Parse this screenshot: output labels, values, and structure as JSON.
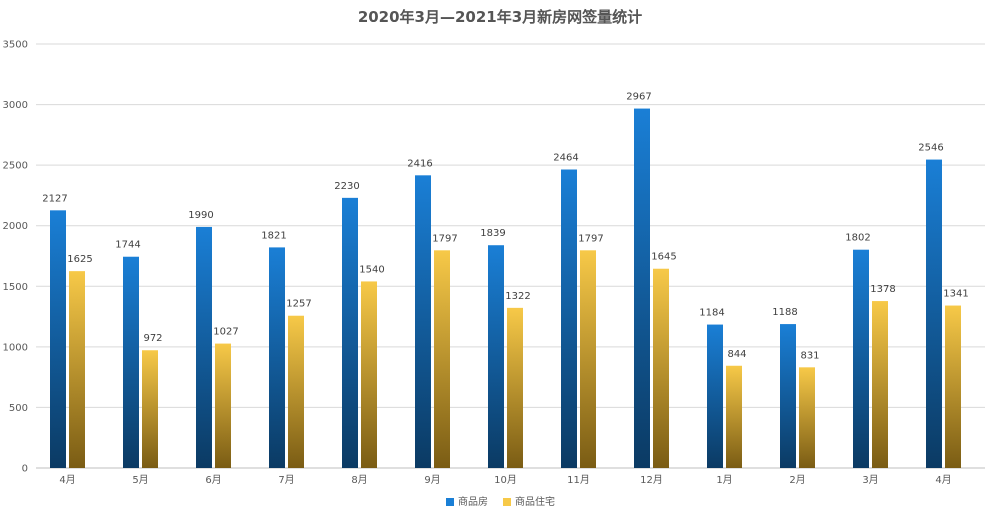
{
  "chart_data": {
    "type": "bar",
    "title": "2020年3月—2021年3月新房网签量统计",
    "categories": [
      "4月",
      "5月",
      "6月",
      "7月",
      "8月",
      "9月",
      "10月",
      "11月",
      "12月",
      "1月",
      "2月",
      "3月",
      "4月"
    ],
    "series": [
      {
        "name": "商品房",
        "values": [
          2127,
          1744,
          1990,
          1821,
          2230,
          2416,
          1839,
          2464,
          2967,
          1184,
          1188,
          1802,
          2546
        ],
        "color_top": "#1a7fd6",
        "color_bottom": "#0b3a63"
      },
      {
        "name": "商品住宅",
        "values": [
          1625,
          972,
          1027,
          1257,
          1540,
          1797,
          1322,
          1797,
          1645,
          844,
          831,
          1378,
          1341
        ],
        "color_top": "#f7c948",
        "color_bottom": "#7a5c14"
      }
    ],
    "ylim": [
      0,
      3500
    ],
    "yticks": [
      "0",
      "500",
      "1000",
      "1500",
      "2000",
      "2500",
      "3000",
      "3500"
    ],
    "grid": true,
    "legend_position": "bottom"
  }
}
